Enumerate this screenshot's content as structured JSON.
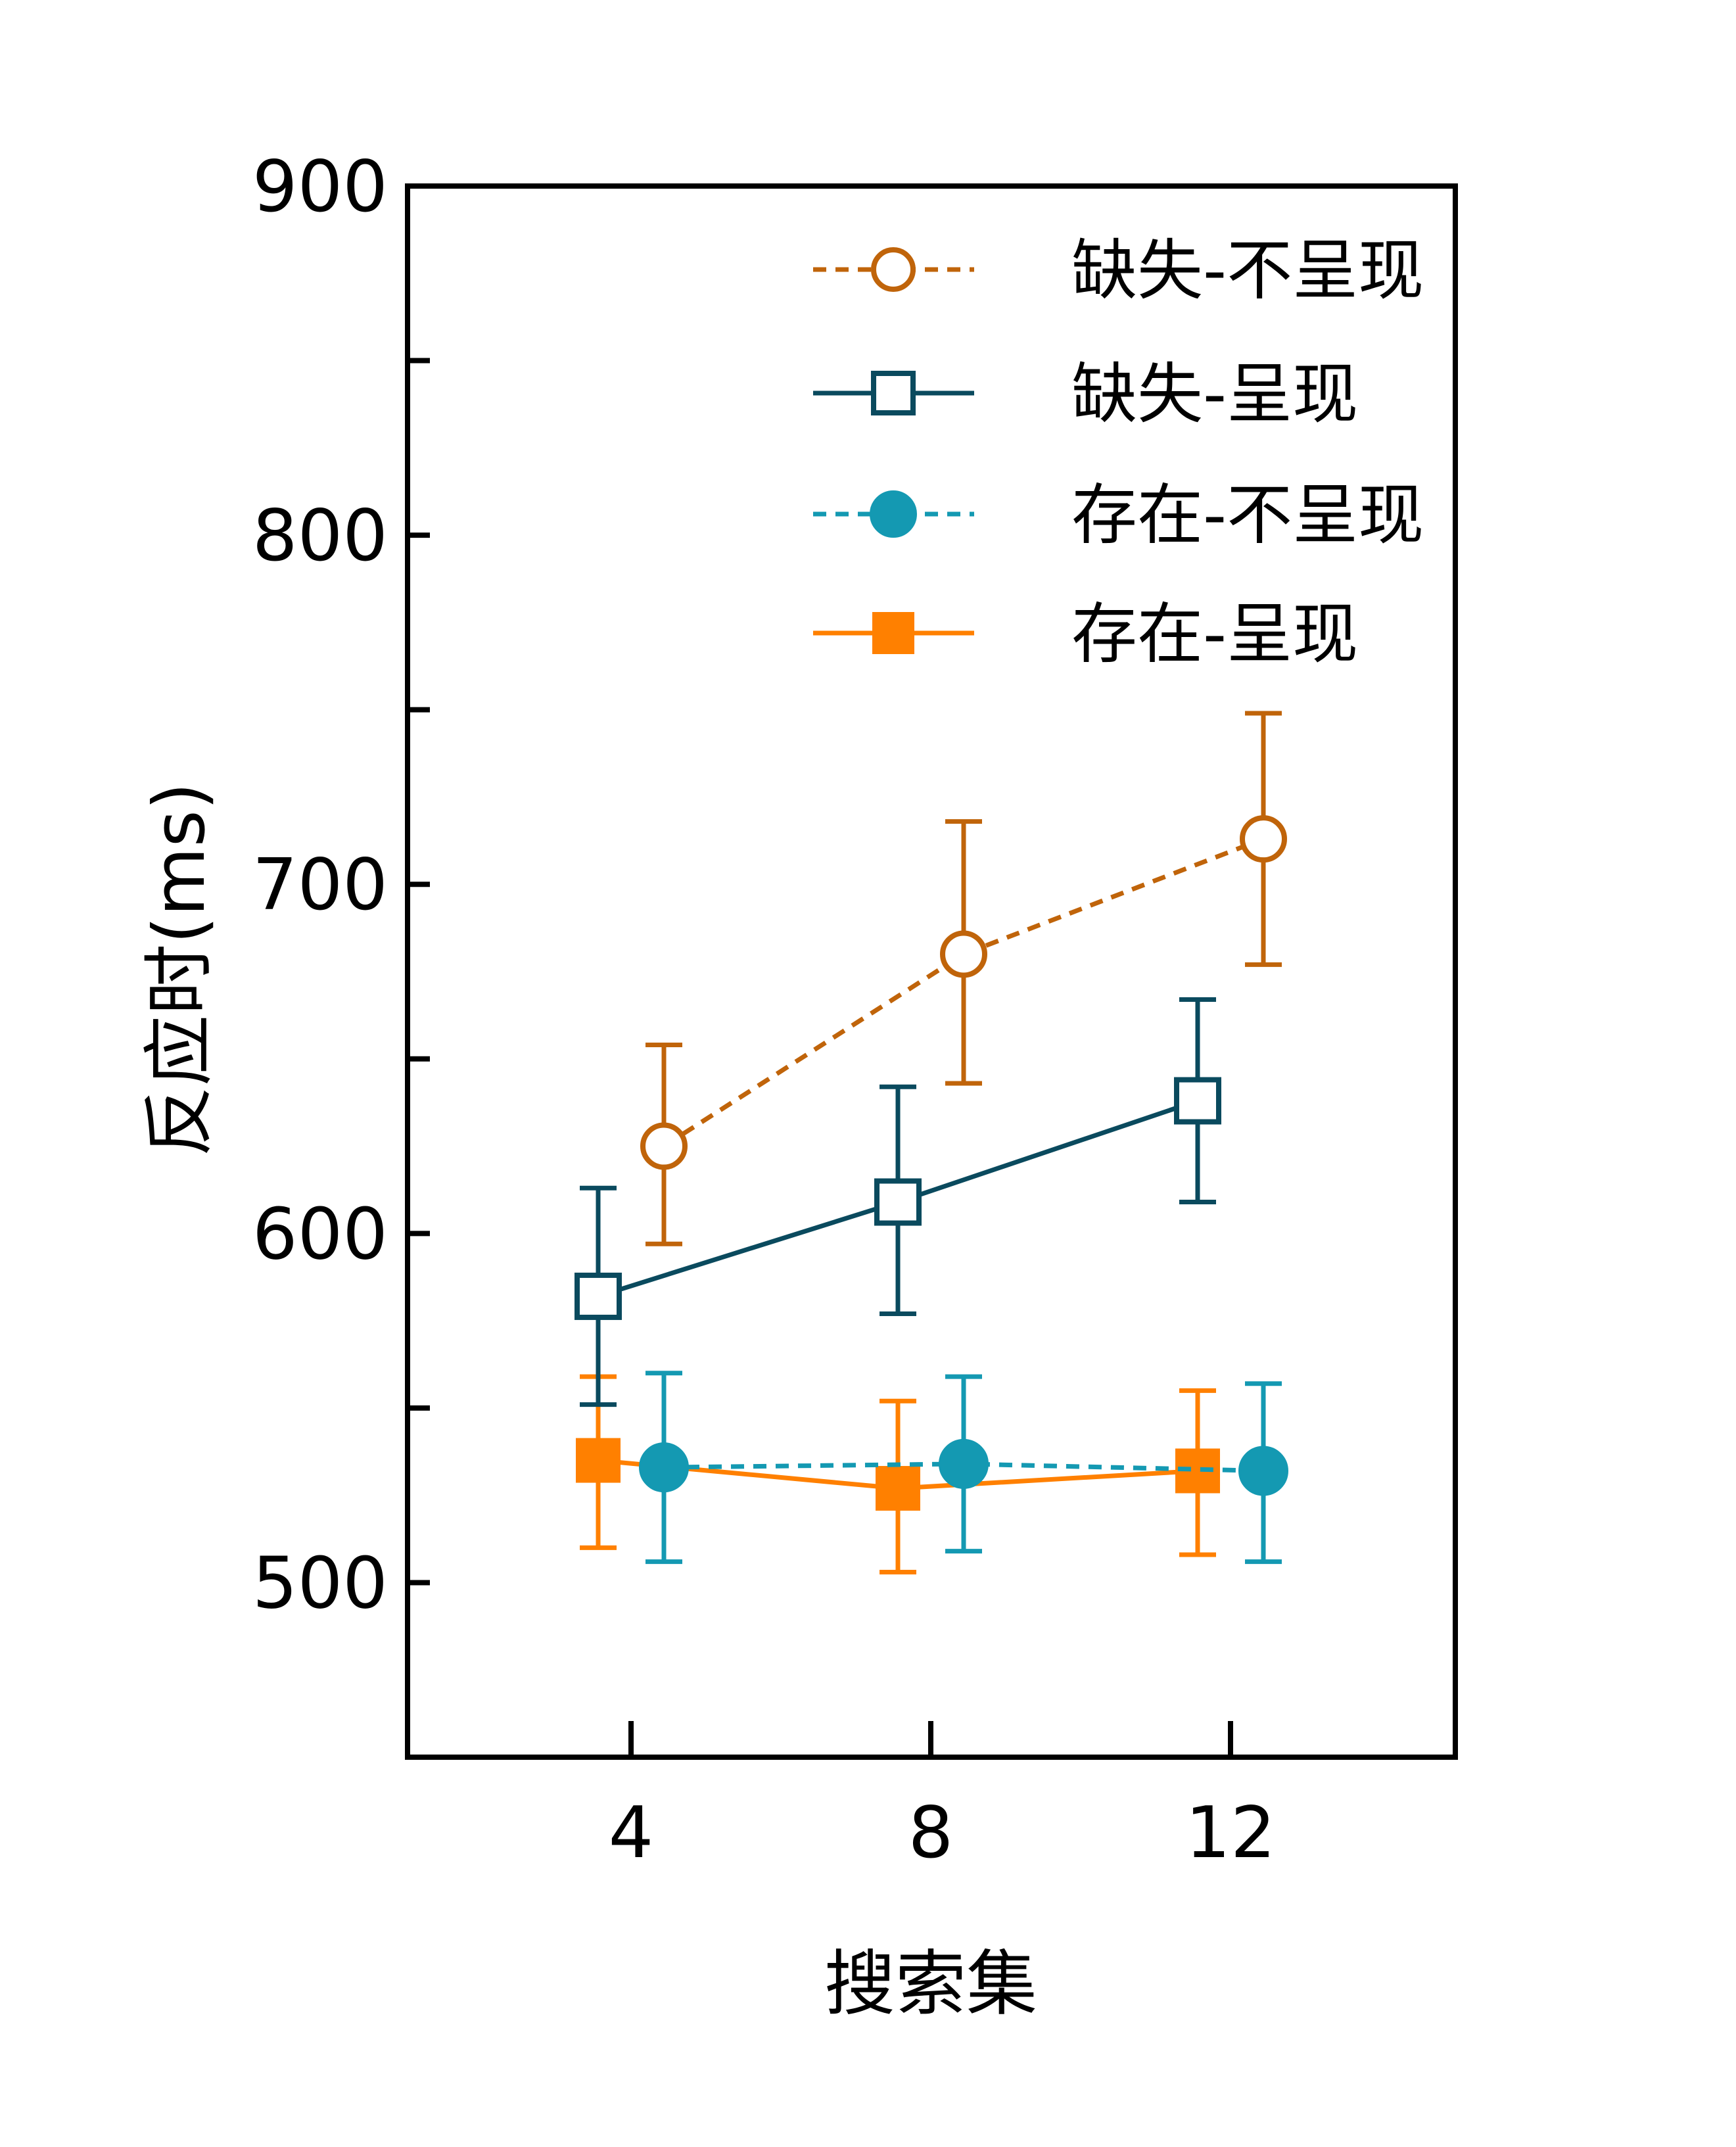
{
  "chart_data": {
    "type": "line",
    "title": "",
    "xlabel": "搜索集",
    "ylabel": "反应时(ms)",
    "categories": [
      "4",
      "8",
      "12"
    ],
    "ylim": [
      450,
      900
    ],
    "yticks": [
      "500",
      "600",
      "700",
      "800",
      "900"
    ],
    "grid": false,
    "legend_position": "top-right",
    "series": [
      {
        "name": "缺失-不呈现",
        "values": [
          625,
          680,
          713
        ],
        "err_low": [
          597,
          643,
          677
        ],
        "err_high": [
          654,
          718,
          749
        ],
        "color": "#C0640A",
        "marker": "circle-open",
        "dashed": true,
        "offset": 0.5
      },
      {
        "name": "缺失-呈现",
        "values": [
          582,
          609,
          638
        ],
        "err_low": [
          551,
          577,
          609
        ],
        "err_high": [
          613,
          642,
          667
        ],
        "color": "#0A4A5E",
        "marker": "square-open",
        "dashed": false,
        "offset": -0.5
      },
      {
        "name": "存在-不呈现",
        "values": [
          533,
          534,
          532
        ],
        "err_low": [
          506,
          509,
          506
        ],
        "err_high": [
          560,
          559,
          557
        ],
        "color": "#1499B2",
        "marker": "circle-filled",
        "dashed": true,
        "offset": 0.5
      },
      {
        "name": "存在-呈现",
        "values": [
          535,
          527,
          532
        ],
        "err_low": [
          510,
          503,
          508
        ],
        "err_high": [
          559,
          552,
          555
        ],
        "color": "#FF8000",
        "marker": "square-filled",
        "dashed": false,
        "offset": -0.5
      }
    ]
  }
}
